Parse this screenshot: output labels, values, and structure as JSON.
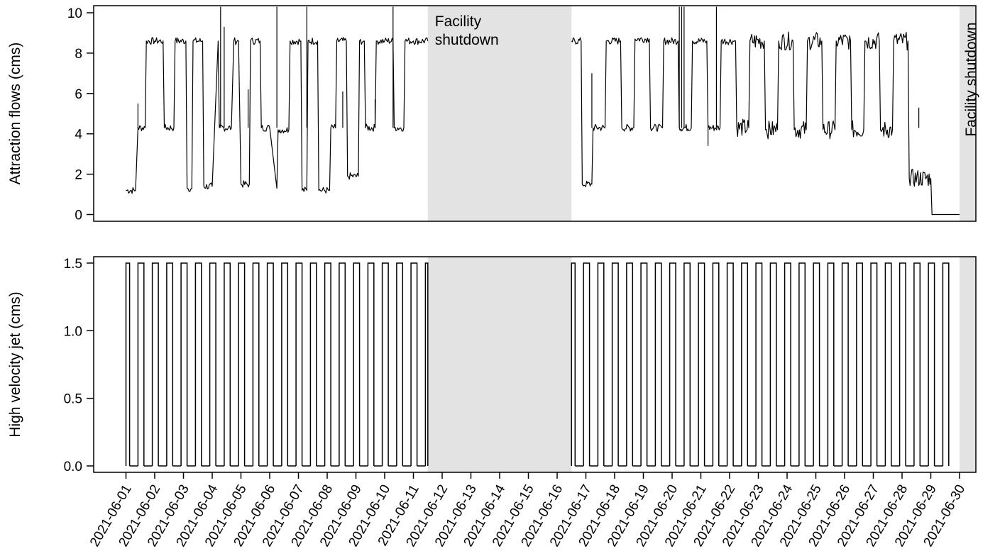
{
  "chart_data": [
    {
      "type": "line",
      "panel": "top",
      "ylabel": "Attraction flows (cms)",
      "ylim": [
        0,
        10
      ],
      "yticks": [
        "0",
        "2",
        "4",
        "6",
        "8",
        "10"
      ],
      "x_type": "date",
      "xlim": [
        "2021-06-01",
        "2021-06-30"
      ],
      "shutdown_periods": [
        {
          "start": "2021-06-11 12:00",
          "end": "2021-06-16 12:00",
          "label_lines": [
            "Facility",
            "shutdown"
          ]
        },
        {
          "start": "2021-06-30",
          "end": "2021-06-30 19:00",
          "label_lines": [
            "Facility shutdown"
          ]
        }
      ],
      "series": [
        {
          "x": [
            "2021-06-01 00:00",
            "2021-06-01 08:00",
            "2021-06-01 10:00",
            "2021-06-01 16:00",
            "2021-06-01 17:00",
            "2021-06-02 00:00",
            "2021-06-02 07:00",
            "2021-06-02 08:00",
            "2021-06-02 16:00",
            "2021-06-02 17:00",
            "2021-06-03 02:00",
            "2021-06-03 03:00",
            "2021-06-03 07:00",
            "2021-06-03 08:00",
            "2021-06-03 16:00",
            "2021-06-03 17:00",
            "2021-06-04 00:00",
            "2021-06-04 05:00",
            "2021-06-04 06:00",
            "2021-06-04 16:00",
            "2021-06-04 18:00",
            "2021-06-04 22:00",
            "2021-06-05 00:00",
            "2021-06-05 07:00",
            "2021-06-05 08:00",
            "2021-06-05 16:00",
            "2021-06-05 17:00",
            "2021-06-06 00:00",
            "2021-06-06 06:00",
            "2021-06-06 07:00",
            "2021-06-06 16:00",
            "2021-06-06 17:00",
            "2021-06-07 02:00",
            "2021-06-07 03:00",
            "2021-06-07 07:00",
            "2021-06-07 08:00",
            "2021-06-07 16:00",
            "2021-06-07 17:00",
            "2021-06-08 02:00",
            "2021-06-08 03:00",
            "2021-06-08 07:00",
            "2021-06-08 08:00",
            "2021-06-08 16:00",
            "2021-06-08 17:00",
            "2021-06-09 02:00",
            "2021-06-09 03:00",
            "2021-06-09 07:00",
            "2021-06-09 08:00",
            "2021-06-09 16:00",
            "2021-06-09 17:00",
            "2021-06-10 00:00",
            "2021-06-10 07:00",
            "2021-06-10 08:00",
            "2021-06-10 16:00",
            "2021-06-10 17:00",
            "2021-06-11 00:00",
            "2021-06-11 12:00"
          ],
          "y": [
            1.2,
            1.2,
            4.3,
            4.3,
            8.6,
            8.6,
            8.6,
            4.3,
            4.3,
            8.6,
            8.6,
            1.3,
            1.3,
            8.6,
            8.6,
            1.4,
            1.4,
            8.6,
            4.3,
            4.3,
            8.6,
            8.6,
            1.5,
            1.5,
            8.6,
            8.6,
            4.3,
            4.3,
            1.3,
            4.2,
            4.2,
            8.6,
            8.6,
            1.2,
            1.2,
            8.6,
            8.6,
            1.2,
            1.2,
            4.3,
            4.3,
            8.6,
            8.6,
            1.9,
            1.9,
            8.6,
            8.6,
            4.3,
            4.3,
            8.6,
            8.6,
            8.6,
            4.3,
            4.3,
            8.6,
            8.6,
            8.6
          ]
        },
        {
          "x": [
            "2021-06-16 12:00",
            "2021-06-16 20:00",
            "2021-06-16 21:00",
            "2021-06-17 05:00",
            "2021-06-17 06:00",
            "2021-06-17 16:00",
            "2021-06-17 17:00",
            "2021-06-18 05:00",
            "2021-06-18 06:00",
            "2021-06-18 16:00",
            "2021-06-18 17:00",
            "2021-06-19 05:00",
            "2021-06-19 06:00",
            "2021-06-19 16:00",
            "2021-06-19 17:00",
            "2021-06-20 05:00",
            "2021-06-20 06:00",
            "2021-06-20 16:00",
            "2021-06-20 17:00",
            "2021-06-21 05:00",
            "2021-06-21 06:00",
            "2021-06-21 16:00",
            "2021-06-21 17:00",
            "2021-06-22 05:00",
            "2021-06-22 06:00",
            "2021-06-22 16:00",
            "2021-06-22 17:00",
            "2021-06-23 05:00",
            "2021-06-23 06:00",
            "2021-06-23 16:00",
            "2021-06-23 17:00",
            "2021-06-24 05:00",
            "2021-06-24 06:00",
            "2021-06-24 16:00",
            "2021-06-24 17:00",
            "2021-06-25 05:00",
            "2021-06-25 06:00",
            "2021-06-25 16:00",
            "2021-06-25 17:00",
            "2021-06-26 05:00",
            "2021-06-26 06:00",
            "2021-06-26 16:00",
            "2021-06-26 17:00",
            "2021-06-27 05:00",
            "2021-06-27 06:00",
            "2021-06-27 16:00",
            "2021-06-27 17:00",
            "2021-06-28 05:00",
            "2021-06-28 06:00",
            "2021-06-29 00:00",
            "2021-06-29 01:00",
            "2021-06-30 00:00"
          ],
          "y": [
            8.6,
            8.6,
            1.5,
            1.5,
            4.3,
            4.3,
            8.6,
            8.6,
            4.3,
            4.3,
            8.7,
            8.7,
            4.3,
            4.3,
            8.6,
            8.6,
            4.3,
            4.3,
            8.6,
            8.6,
            4.3,
            4.3,
            8.6,
            8.6,
            4.3,
            4.3,
            8.6,
            8.6,
            4.2,
            4.2,
            8.6,
            8.6,
            4.2,
            4.2,
            8.6,
            8.6,
            4.2,
            4.2,
            8.6,
            8.6,
            4.2,
            4.2,
            8.6,
            8.6,
            4.2,
            4.2,
            8.6,
            8.6,
            1.8,
            1.8,
            0.0,
            0.0
          ]
        }
      ],
      "spikes": [
        {
          "x": "2021-06-01 10:00",
          "y": 5.5
        },
        {
          "x": "2021-06-04 07:00",
          "y": 10.3
        },
        {
          "x": "2021-06-04 10:00",
          "y": 9.3
        },
        {
          "x": "2021-06-05 06:00",
          "y": 6.2
        },
        {
          "x": "2021-06-06 06:00",
          "y": 10.3
        },
        {
          "x": "2021-06-07 07:00",
          "y": 10.3
        },
        {
          "x": "2021-06-08 13:00",
          "y": 6.1
        },
        {
          "x": "2021-06-09 16:00",
          "y": 5.7
        },
        {
          "x": "2021-06-10 07:00",
          "y": 10.3
        },
        {
          "x": "2021-06-17 05:00",
          "y": 7.0
        },
        {
          "x": "2021-06-20 06:00",
          "y": 10.3
        },
        {
          "x": "2021-06-20 08:00",
          "y": 10.3
        },
        {
          "x": "2021-06-20 10:00",
          "y": 10.3
        },
        {
          "x": "2021-06-21 06:00",
          "y": 3.4
        },
        {
          "x": "2021-06-21 13:00",
          "y": 10.3
        },
        {
          "x": "2021-06-28 14:00",
          "y": 5.3
        }
      ]
    },
    {
      "type": "line",
      "panel": "bottom",
      "ylabel": "High velocity jet (cms)",
      "ylim": [
        0,
        1.5
      ],
      "yticks": [
        "0.0",
        "0.5",
        "1.0",
        "1.5"
      ],
      "x_type": "date",
      "xlim": [
        "2021-06-01",
        "2021-06-30"
      ],
      "series": [
        {
          "on_windows": [
            [
              "2021-06-01 00:00",
              "2021-06-01 03:00"
            ],
            [
              "2021-06-01 10:00",
              "2021-06-01 15:00"
            ],
            [
              "2021-06-01 22:00",
              "2021-06-02 03:00"
            ],
            [
              "2021-06-02 10:00",
              "2021-06-02 15:00"
            ],
            [
              "2021-06-02 22:00",
              "2021-06-03 03:00"
            ],
            [
              "2021-06-03 10:00",
              "2021-06-03 15:00"
            ],
            [
              "2021-06-03 22:00",
              "2021-06-04 03:00"
            ],
            [
              "2021-06-04 10:00",
              "2021-06-04 15:00"
            ],
            [
              "2021-06-04 22:00",
              "2021-06-05 03:00"
            ],
            [
              "2021-06-05 10:00",
              "2021-06-05 15:00"
            ],
            [
              "2021-06-05 22:00",
              "2021-06-06 03:00"
            ],
            [
              "2021-06-06 10:00",
              "2021-06-06 15:00"
            ],
            [
              "2021-06-06 22:00",
              "2021-06-07 03:00"
            ],
            [
              "2021-06-07 10:00",
              "2021-06-07 15:00"
            ],
            [
              "2021-06-07 22:00",
              "2021-06-08 03:00"
            ],
            [
              "2021-06-08 10:00",
              "2021-06-08 15:00"
            ],
            [
              "2021-06-08 22:00",
              "2021-06-09 03:00"
            ],
            [
              "2021-06-09 10:00",
              "2021-06-09 15:00"
            ],
            [
              "2021-06-09 22:00",
              "2021-06-10 03:00"
            ],
            [
              "2021-06-10 10:00",
              "2021-06-10 15:00"
            ],
            [
              "2021-06-10 22:00",
              "2021-06-11 03:00"
            ],
            [
              "2021-06-11 10:00",
              "2021-06-11 12:00"
            ],
            [
              "2021-06-16 12:00",
              "2021-06-16 15:00"
            ],
            [
              "2021-06-16 22:00",
              "2021-06-17 03:00"
            ],
            [
              "2021-06-17 10:00",
              "2021-06-17 15:00"
            ],
            [
              "2021-06-17 22:00",
              "2021-06-18 03:00"
            ],
            [
              "2021-06-18 10:00",
              "2021-06-18 15:00"
            ],
            [
              "2021-06-18 22:00",
              "2021-06-19 03:00"
            ],
            [
              "2021-06-19 10:00",
              "2021-06-19 15:00"
            ],
            [
              "2021-06-19 22:00",
              "2021-06-20 03:00"
            ],
            [
              "2021-06-20 10:00",
              "2021-06-20 15:00"
            ],
            [
              "2021-06-20 22:00",
              "2021-06-21 03:00"
            ],
            [
              "2021-06-21 10:00",
              "2021-06-21 15:00"
            ],
            [
              "2021-06-21 22:00",
              "2021-06-22 03:00"
            ],
            [
              "2021-06-22 10:00",
              "2021-06-22 15:00"
            ],
            [
              "2021-06-22 22:00",
              "2021-06-23 03:00"
            ],
            [
              "2021-06-23 10:00",
              "2021-06-23 15:00"
            ],
            [
              "2021-06-23 22:00",
              "2021-06-24 03:00"
            ],
            [
              "2021-06-24 10:00",
              "2021-06-24 15:00"
            ],
            [
              "2021-06-24 22:00",
              "2021-06-25 03:00"
            ],
            [
              "2021-06-25 10:00",
              "2021-06-25 15:00"
            ],
            [
              "2021-06-25 22:00",
              "2021-06-26 03:00"
            ],
            [
              "2021-06-26 10:00",
              "2021-06-26 15:00"
            ],
            [
              "2021-06-26 22:00",
              "2021-06-27 03:00"
            ],
            [
              "2021-06-27 10:00",
              "2021-06-27 15:00"
            ],
            [
              "2021-06-27 22:00",
              "2021-06-28 03:00"
            ],
            [
              "2021-06-28 10:00",
              "2021-06-28 15:00"
            ],
            [
              "2021-06-28 22:00",
              "2021-06-29 03:00"
            ],
            [
              "2021-06-29 10:00",
              "2021-06-29 15:00"
            ]
          ],
          "on_value": 1.5,
          "off_value": 0.0
        }
      ],
      "shutdown_periods": [
        {
          "start": "2021-06-11 12:00",
          "end": "2021-06-16 12:00"
        },
        {
          "start": "2021-06-30",
          "end": "2021-06-30 19:00"
        }
      ]
    }
  ],
  "x_tick_labels": [
    "2021-06-01",
    "2021-06-02",
    "2021-06-03",
    "2021-06-04",
    "2021-06-05",
    "2021-06-06",
    "2021-06-07",
    "2021-06-08",
    "2021-06-09",
    "2021-06-10",
    "2021-06-11",
    "2021-06-12",
    "2021-06-13",
    "2021-06-14",
    "2021-06-15",
    "2021-06-16",
    "2021-06-17",
    "2021-06-18",
    "2021-06-19",
    "2021-06-20",
    "2021-06-21",
    "2021-06-22",
    "2021-06-23",
    "2021-06-24",
    "2021-06-25",
    "2021-06-26",
    "2021-06-27",
    "2021-06-28",
    "2021-06-29",
    "2021-06-30"
  ],
  "colors": {
    "line": "#000000",
    "shutdown_fill": "#e3e3e3",
    "frame": "#000000"
  }
}
